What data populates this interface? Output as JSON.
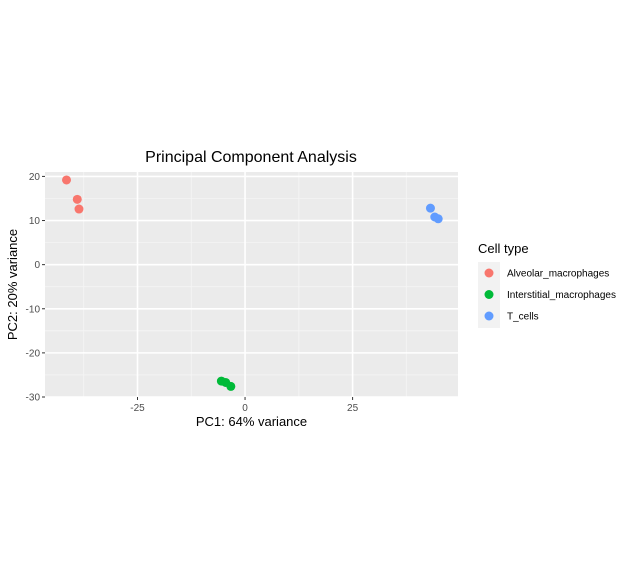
{
  "chart_data": {
    "type": "scatter",
    "title": "Principal Component Analysis",
    "xlabel": "PC1: 64% variance",
    "ylabel": "PC2: 20% variance",
    "xlim": [
      -46.5,
      49.5
    ],
    "ylim": [
      -30,
      21
    ],
    "x_ticks": [
      -25,
      0,
      25
    ],
    "y_ticks": [
      -30,
      -20,
      -10,
      0,
      10,
      20
    ],
    "grid": true,
    "legend": {
      "title": "Cell type",
      "position": "right"
    },
    "series": [
      {
        "name": "Alveolar_macrophages",
        "color": "#F8766D",
        "points": [
          {
            "x": -41.5,
            "y": 19.2
          },
          {
            "x": -39.0,
            "y": 14.8
          },
          {
            "x": -38.6,
            "y": 12.6
          }
        ]
      },
      {
        "name": "Interstitial_macrophages",
        "color": "#00BA38",
        "points": [
          {
            "x": -5.5,
            "y": -26.4
          },
          {
            "x": -4.5,
            "y": -26.7
          },
          {
            "x": -3.3,
            "y": -27.6
          }
        ]
      },
      {
        "name": "T_cells",
        "color": "#619CFF",
        "points": [
          {
            "x": 43.1,
            "y": 12.8
          },
          {
            "x": 44.1,
            "y": 10.8
          },
          {
            "x": 44.9,
            "y": 10.4
          }
        ]
      }
    ]
  }
}
